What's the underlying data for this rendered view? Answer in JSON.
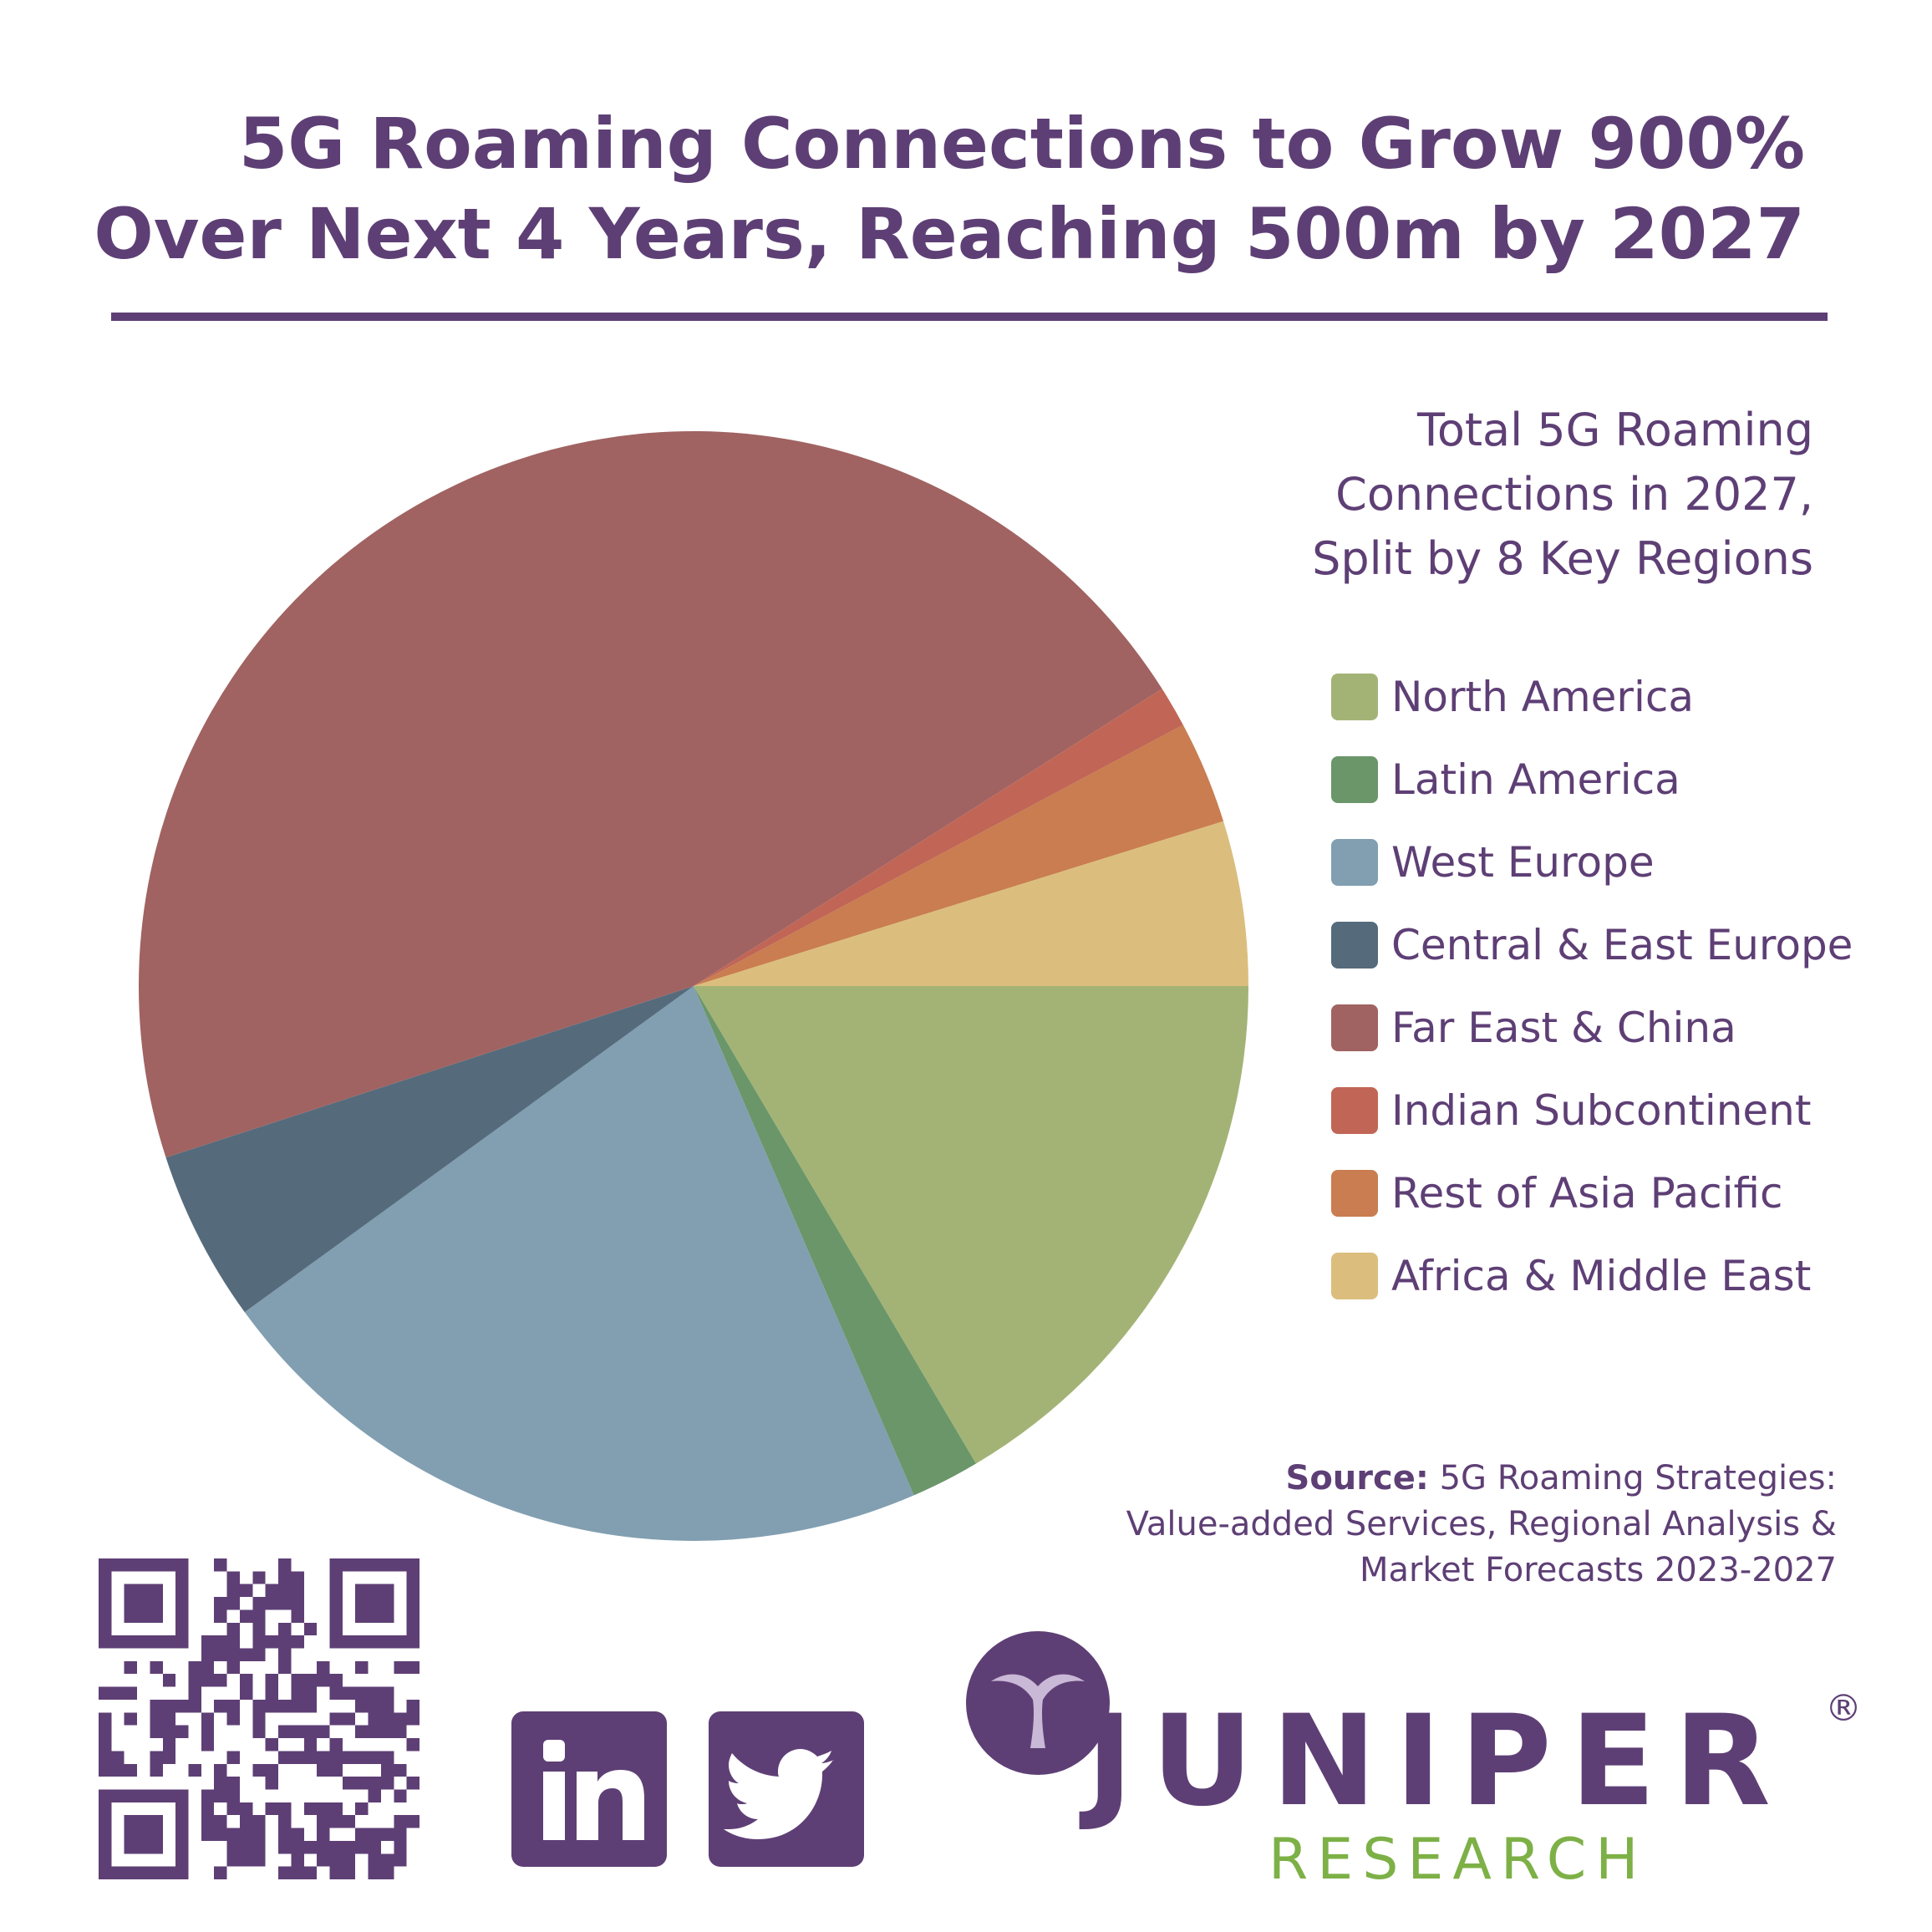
{
  "header": {
    "title_line1": "5G Roaming Connections to Grow 900%",
    "title_line2": "Over Next 4 Years, Reaching 500m by 2027"
  },
  "chart_data": {
    "type": "pie",
    "subtitle_lines": [
      "Total 5G Roaming",
      "Connections in 2027,",
      "Split by 8 Key Regions"
    ],
    "legend_position": "right",
    "categories": [
      "North America",
      "Latin America",
      "West Europe",
      "Central & East Europe",
      "Far East & China",
      "Indian Subcontinent",
      "Rest of Asia Pacific",
      "Africa & Middle East"
    ],
    "values": [
      16.5,
      2.0,
      21.5,
      5.0,
      46.0,
      1.2,
      3.0,
      4.8
    ],
    "colors": [
      "#a3b376",
      "#6a9669",
      "#819fb0",
      "#556b7c",
      "#a06361",
      "#c16656",
      "#c97d50",
      "#dbbe7d"
    ]
  },
  "source": {
    "label": "Source:",
    "line1": "5G Roaming Strategies:",
    "line2": "Value-added Services, Regional Analysis &",
    "line3": "Market Forecasts 2023-2027"
  },
  "brand": {
    "name": "JUNIPER",
    "registered": "®",
    "sub": "RESEARCH",
    "primary_color": "#5e3f75",
    "accent_color": "#7db046"
  },
  "social": [
    {
      "icon": "linkedin-icon",
      "label": "in"
    },
    {
      "icon": "twitter-icon"
    }
  ],
  "qr": {
    "icon": "qr-code"
  }
}
